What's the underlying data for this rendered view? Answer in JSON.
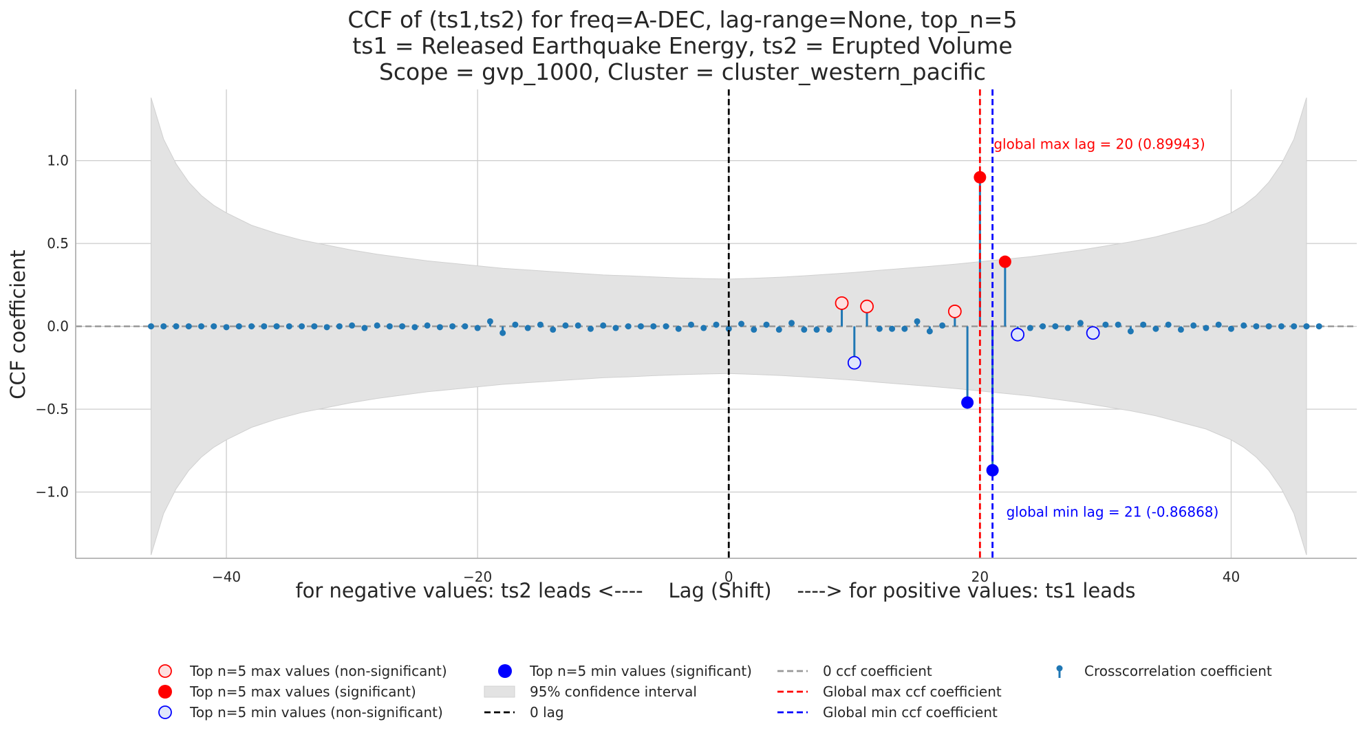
{
  "chart_data": {
    "type": "stem",
    "title_lines": [
      "CCF of (ts1,ts2) for freq=A-DEC, lag-range=None, top_n=5",
      "ts1 = Released Earthquake Energy, ts2 = Erupted Volume",
      "Scope = gvp_1000, Cluster = cluster_western_pacific"
    ],
    "xlabel": "for negative values: ts2 leads <----    Lag (Shift)    ----> for positive values: ts1 leads",
    "ylabel": "CCF coefficient",
    "xlim": [
      -52,
      50
    ],
    "ylim": [
      -1.4,
      1.43
    ],
    "x_ticks": [
      -40,
      -20,
      0,
      20,
      40
    ],
    "y_ticks": [
      1.0,
      0.5,
      0.0,
      -0.5,
      -1.0
    ],
    "x_tick_labels": [
      "−40",
      "−20",
      "0",
      "20",
      "40"
    ],
    "y_tick_labels": [
      "1.0",
      "0.5",
      "0.0",
      "−0.5",
      "−1.0"
    ],
    "grid": true,
    "lags": [
      -46,
      -45,
      -44,
      -43,
      -42,
      -41,
      -40,
      -39,
      -38,
      -37,
      -36,
      -35,
      -34,
      -33,
      -32,
      -31,
      -30,
      -29,
      -28,
      -27,
      -26,
      -25,
      -24,
      -23,
      -22,
      -21,
      -20,
      -19,
      -18,
      -17,
      -16,
      -15,
      -14,
      -13,
      -12,
      -11,
      -10,
      -9,
      -8,
      -7,
      -6,
      -5,
      -4,
      -3,
      -2,
      -1,
      0,
      1,
      2,
      3,
      4,
      5,
      6,
      7,
      8,
      9,
      10,
      11,
      12,
      13,
      14,
      15,
      16,
      17,
      18,
      19,
      20,
      21,
      22,
      23,
      24,
      25,
      26,
      27,
      28,
      29,
      30,
      31,
      32,
      33,
      34,
      35,
      36,
      37,
      38,
      39,
      40,
      41,
      42,
      43,
      44,
      45,
      46,
      47
    ],
    "ccf": [
      0.0,
      0.0,
      0.0,
      0.0,
      0.0,
      0.0,
      -0.005,
      0.0,
      0.0,
      0.0,
      0.0,
      0.0,
      0.0,
      0.0,
      -0.005,
      0.0,
      0.005,
      -0.01,
      0.005,
      0.0,
      0.0,
      -0.005,
      0.005,
      -0.005,
      0.0,
      0.0,
      -0.01,
      0.03,
      -0.04,
      0.01,
      -0.01,
      0.01,
      -0.02,
      0.005,
      0.005,
      -0.015,
      0.005,
      -0.01,
      0.0,
      0.0,
      0.0,
      0.0,
      -0.015,
      0.01,
      -0.01,
      0.01,
      -0.015,
      0.015,
      -0.02,
      0.01,
      -0.02,
      0.02,
      -0.02,
      -0.02,
      -0.02,
      0.14,
      -0.22,
      0.12,
      -0.015,
      -0.015,
      -0.015,
      0.03,
      -0.03,
      0.005,
      0.09,
      -0.46,
      0.89943,
      -0.86868,
      0.39,
      -0.05,
      -0.01,
      0.0,
      0.0,
      -0.01,
      0.02,
      -0.04,
      0.01,
      0.01,
      -0.03,
      0.01,
      -0.015,
      0.01,
      -0.02,
      0.005,
      -0.01,
      0.01,
      -0.015,
      0.005,
      0.0,
      0.0,
      0.0,
      0.0,
      0.0,
      0.0
    ],
    "conf_band_x": [
      -46,
      -45,
      -44,
      -43,
      -42,
      -41,
      -40,
      -38,
      -36,
      -34,
      -32,
      -30,
      -28,
      -26,
      -24,
      -22,
      -20,
      -18,
      -16,
      -14,
      -12,
      -10,
      -8,
      -6,
      -4,
      -2,
      0,
      2,
      4,
      6,
      8,
      10,
      12,
      14,
      16,
      18,
      20,
      22,
      24,
      26,
      28,
      30,
      32,
      34,
      36,
      38,
      40,
      41,
      42,
      43,
      44,
      45,
      46
    ],
    "conf_band_upper": [
      1.38,
      1.13,
      0.98,
      0.87,
      0.79,
      0.73,
      0.685,
      0.61,
      0.56,
      0.52,
      0.49,
      0.46,
      0.435,
      0.415,
      0.395,
      0.38,
      0.365,
      0.35,
      0.34,
      0.33,
      0.32,
      0.31,
      0.305,
      0.298,
      0.292,
      0.288,
      0.285,
      0.29,
      0.296,
      0.305,
      0.315,
      0.325,
      0.338,
      0.35,
      0.362,
      0.375,
      0.39,
      0.405,
      0.42,
      0.44,
      0.46,
      0.485,
      0.51,
      0.54,
      0.58,
      0.62,
      0.685,
      0.73,
      0.79,
      0.87,
      0.98,
      1.13,
      1.38
    ],
    "top_max_nonsignificant": {
      "x": [
        9,
        11,
        18
      ],
      "y": [
        0.14,
        0.12,
        0.09
      ]
    },
    "top_max_significant": {
      "x": [
        20,
        22
      ],
      "y": [
        0.89943,
        0.39
      ]
    },
    "top_min_nonsignificant": {
      "x": [
        10,
        23,
        29
      ],
      "y": [
        -0.22,
        -0.05,
        -0.04
      ]
    },
    "top_min_significant": {
      "x": [
        19,
        21
      ],
      "y": [
        -0.46,
        -0.86868
      ]
    },
    "global_max_lag": 20,
    "global_min_lag": 21,
    "annotations": {
      "global_max": "global max lag = 20 (0.89943)",
      "global_min": "global min lag = 21 (-0.86868)"
    },
    "colors": {
      "stem": "#1f77b4",
      "max_marker": "#ff0000",
      "min_marker": "#0000ff",
      "zero_line": "#999999",
      "lag0_line": "#000000",
      "band": "#e3e3e3",
      "grid": "#cccccc"
    },
    "legend_placement": "bottom",
    "legend": [
      {
        "label": "Top n=5 max values (non-significant)",
        "kind": "marker-open",
        "color": "#ff0000"
      },
      {
        "label": "Top n=5 max values (significant)",
        "kind": "marker-filled",
        "color": "#ff0000"
      },
      {
        "label": "Top n=5 min values (non-significant)",
        "kind": "marker-open",
        "color": "#0000ff"
      },
      {
        "label": "Top n=5 min values (significant)",
        "kind": "marker-filled",
        "color": "#0000ff"
      },
      {
        "label": "95% confidence interval",
        "kind": "patch",
        "color": "#e3e3e3"
      },
      {
        "label": "0 lag",
        "kind": "dash",
        "color": "#000000"
      },
      {
        "label": "0 ccf coefficient",
        "kind": "dash",
        "color": "#999999"
      },
      {
        "label": "Global max ccf coefficient",
        "kind": "dash",
        "color": "#ff0000"
      },
      {
        "label": "Global min ccf coefficient",
        "kind": "dash",
        "color": "#0000ff"
      },
      {
        "label": "Crosscorrelation coefficient",
        "kind": "stem",
        "color": "#1f77b4"
      }
    ]
  }
}
